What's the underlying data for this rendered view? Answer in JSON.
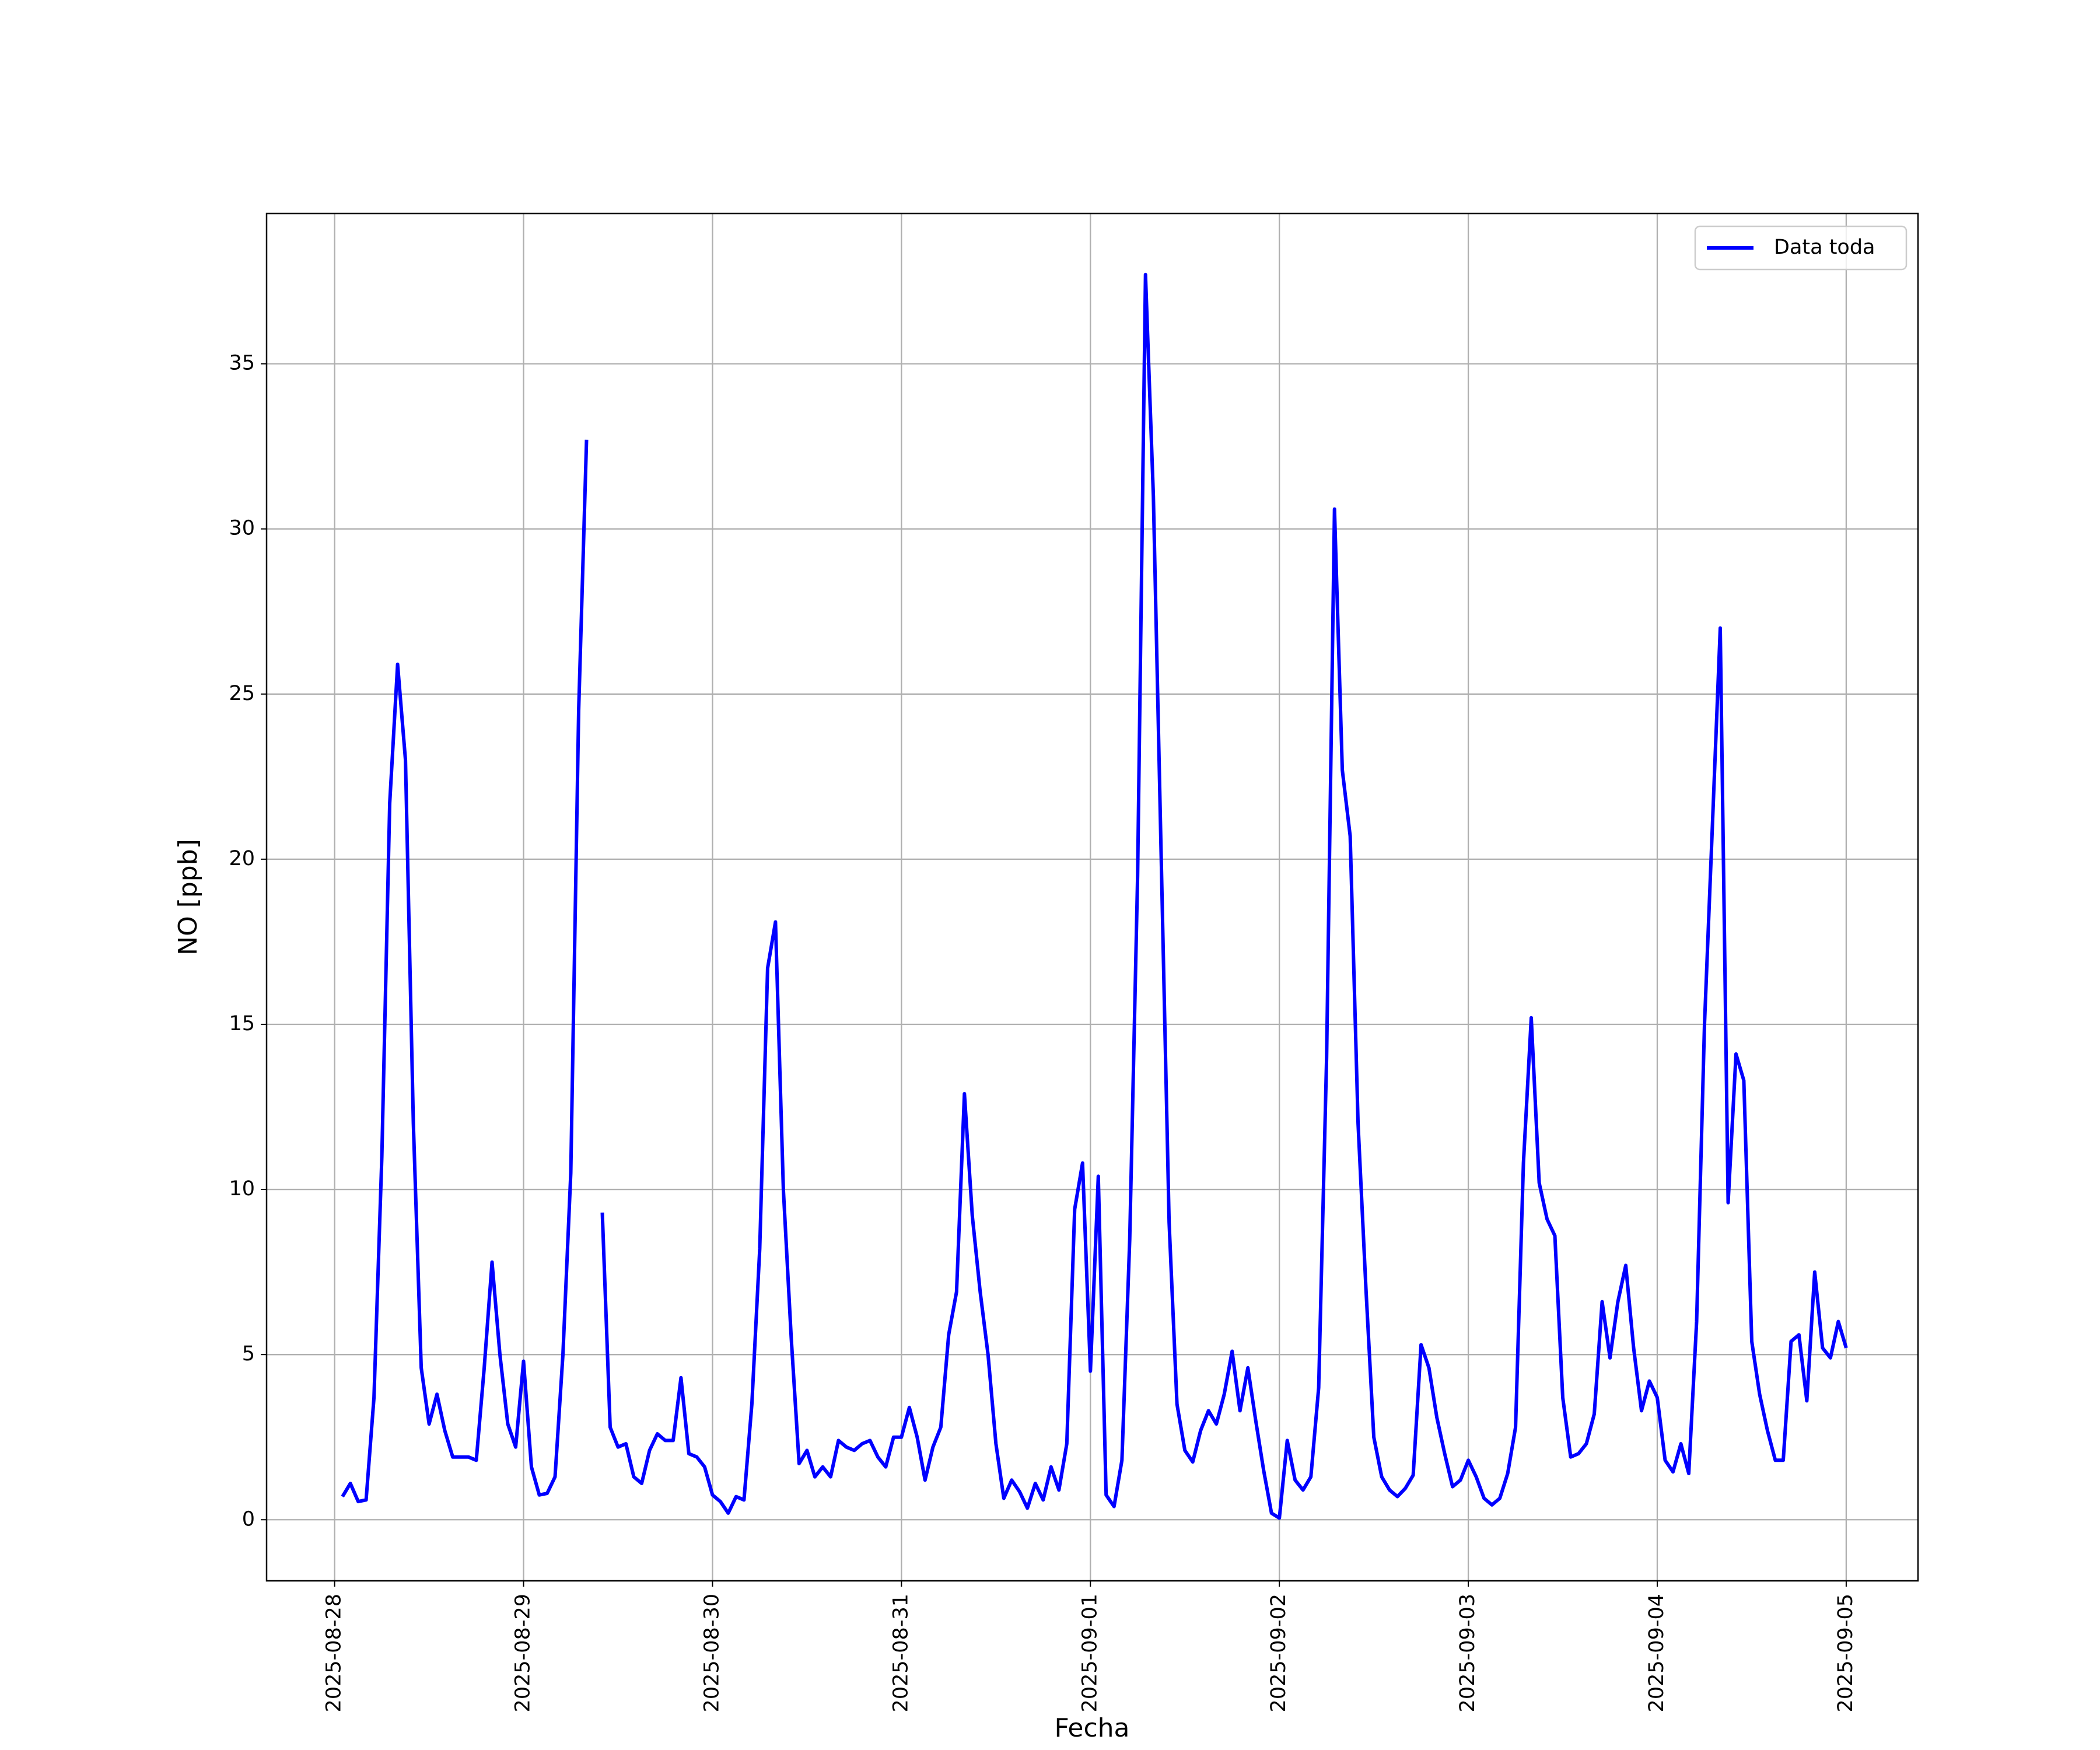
{
  "chart_data": {
    "type": "line",
    "xlabel": "Fecha",
    "ylabel": "NO [ppb]",
    "x": [
      0.0417,
      0.0833,
      0.125,
      0.1667,
      0.2083,
      0.25,
      0.2917,
      0.3333,
      0.375,
      0.4167,
      0.4583,
      0.5,
      0.5417,
      0.5833,
      0.625,
      0.6667,
      0.7083,
      0.75,
      0.7917,
      0.8333,
      0.875,
      0.9167,
      0.9583,
      1,
      1.0417,
      1.0833,
      1.125,
      1.1667,
      1.2083,
      1.25,
      1.2917,
      1.3333,
      1.375,
      1.4167,
      1.4583,
      1.5,
      1.5417,
      1.5833,
      1.625,
      1.6667,
      1.7083,
      1.75,
      1.7917,
      1.8333,
      1.875,
      1.9167,
      1.9583,
      2,
      2.0417,
      2.0833,
      2.125,
      2.1667,
      2.2083,
      2.25,
      2.2917,
      2.3333,
      2.375,
      2.4167,
      2.4583,
      2.5,
      2.5417,
      2.5833,
      2.625,
      2.6667,
      2.7083,
      2.75,
      2.7917,
      2.8333,
      2.875,
      2.9167,
      2.9583,
      3,
      3.0417,
      3.0833,
      3.125,
      3.1667,
      3.2083,
      3.25,
      3.2917,
      3.3333,
      3.375,
      3.4167,
      3.4583,
      3.5,
      3.5417,
      3.5833,
      3.625,
      3.6667,
      3.7083,
      3.75,
      3.7917,
      3.8333,
      3.875,
      3.9167,
      3.9583,
      4,
      4.0417,
      4.0833,
      4.125,
      4.1667,
      4.2083,
      4.25,
      4.2917,
      4.3333,
      4.375,
      4.4167,
      4.4583,
      4.5,
      4.5417,
      4.5833,
      4.625,
      4.6667,
      4.7083,
      4.75,
      4.7917,
      4.8333,
      4.875,
      4.9167,
      4.9583,
      5,
      5.0417,
      5.0833,
      5.125,
      5.1667,
      5.2083,
      5.25,
      5.2917,
      5.3333,
      5.375,
      5.4167,
      5.4583,
      5.5,
      5.5417,
      5.5833,
      5.625,
      5.6667,
      5.7083,
      5.75,
      5.7917,
      5.8333,
      5.875,
      5.9167,
      5.9583,
      6,
      6.0417,
      6.0833,
      6.125,
      6.1667,
      6.2083,
      6.25,
      6.2917,
      6.3333,
      6.375,
      6.4167,
      6.4583,
      6.5,
      6.5417,
      6.5833,
      6.625,
      6.6667,
      6.7083,
      6.75,
      6.7917,
      6.8333,
      6.875,
      6.9167,
      6.9583,
      7,
      7.0417,
      7.0833,
      7.125,
      7.1667,
      7.2083,
      7.25,
      7.2917,
      7.3333,
      7.375,
      7.4167,
      7.4583,
      7.5,
      7.5417,
      7.5833,
      7.625,
      7.6667,
      7.7083,
      7.75,
      7.7917,
      7.8333,
      7.875,
      7.9167,
      7.9583,
      8
    ],
    "series": [
      {
        "name": "Data toda",
        "color": "#0000ff",
        "values": [
          0.7,
          1.1,
          0.55,
          0.6,
          3.7,
          11,
          21.7,
          25.9,
          23,
          12,
          4.6,
          2.9,
          3.8,
          2.7,
          1.9,
          1.9,
          1.9,
          1.8,
          4.6,
          7.8,
          5,
          2.9,
          2.2,
          4.8,
          1.6,
          0.75,
          0.8,
          1.3,
          5,
          10.5,
          24.5,
          32.7,
          null,
          9.3,
          2.8,
          2.2,
          2.3,
          1.3,
          1.1,
          2.1,
          2.6,
          2.4,
          2.4,
          4.3,
          2,
          1.9,
          1.6,
          0.75,
          0.55,
          0.2,
          0.7,
          0.6,
          3.5,
          8.2,
          16.7,
          18.1,
          10,
          5.5,
          1.7,
          2.1,
          1.3,
          1.6,
          1.3,
          2.4,
          2.2,
          2.1,
          2.3,
          2.4,
          1.9,
          1.6,
          2.5,
          2.5,
          3.4,
          2.5,
          1.2,
          2.2,
          2.8,
          5.6,
          6.9,
          12.9,
          9.2,
          6.9,
          5,
          2.3,
          0.65,
          1.2,
          0.85,
          0.35,
          1.1,
          0.6,
          1.6,
          0.9,
          2.3,
          9.4,
          10.8,
          4.5,
          10.4,
          0.75,
          0.4,
          1.8,
          8.5,
          19.5,
          37.7,
          31,
          20,
          9,
          3.5,
          2.1,
          1.75,
          2.7,
          3.3,
          2.9,
          3.8,
          5.1,
          3.3,
          4.6,
          3,
          1.5,
          0.2,
          0.05,
          2.4,
          1.2,
          0.9,
          1.3,
          4,
          14,
          30.6,
          22.7,
          20.7,
          12,
          7,
          2.5,
          1.3,
          0.9,
          0.7,
          0.95,
          1.35,
          5.3,
          4.6,
          3.1,
          2,
          1,
          1.2,
          1.8,
          1.3,
          0.65,
          0.45,
          0.65,
          1.4,
          2.8,
          10.8,
          15.2,
          10.2,
          9.1,
          8.6,
          3.7,
          1.9,
          2,
          2.3,
          3.2,
          6.6,
          4.9,
          6.6,
          7.7,
          5.2,
          3.3,
          4.2,
          3.7,
          1.8,
          1.45,
          2.3,
          1.4,
          6,
          15,
          21,
          27,
          9.6,
          14.1,
          13.3,
          5.4,
          3.8,
          2.7,
          1.8,
          1.8,
          5.4,
          5.6,
          3.6,
          7.5,
          5.2,
          4.9,
          6,
          5.2
        ]
      }
    ],
    "xlim": [
      -0.36,
      8.38
    ],
    "xticks": [
      {
        "value": 0,
        "label": "2025-08-28"
      },
      {
        "value": 1,
        "label": "2025-08-29"
      },
      {
        "value": 2,
        "label": "2025-08-30"
      },
      {
        "value": 3,
        "label": "2025-08-31"
      },
      {
        "value": 4,
        "label": "2025-09-01"
      },
      {
        "value": 5,
        "label": "2025-09-02"
      },
      {
        "value": 6,
        "label": "2025-09-03"
      },
      {
        "value": 7,
        "label": "2025-09-04"
      },
      {
        "value": 8,
        "label": "2025-09-05"
      }
    ],
    "ylim": [
      -1.85,
      39.55
    ],
    "yticks": [
      0,
      5,
      10,
      15,
      20,
      25,
      30,
      35
    ],
    "grid": true,
    "legend": "upper right"
  }
}
